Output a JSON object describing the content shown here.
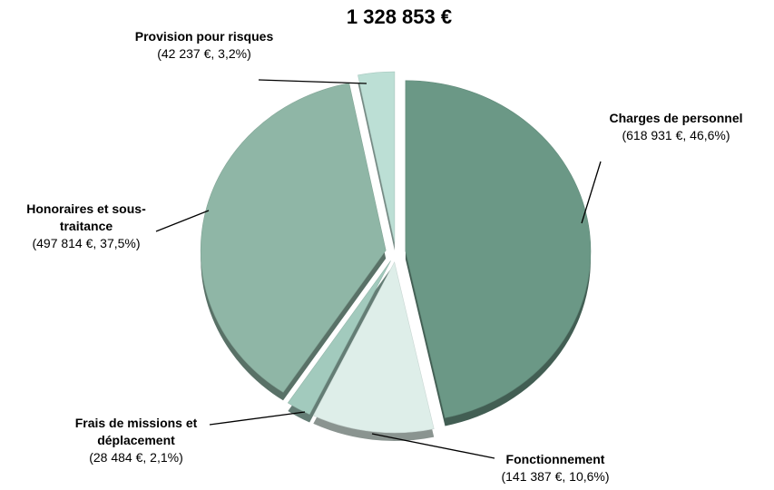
{
  "chart_data": {
    "type": "pie",
    "title": "1 328 853 €",
    "categories": [
      "Charges de personnel",
      "Fonctionnement",
      "Frais de missions et déplacement",
      "Honoraires et sous-traitance",
      "Provision pour risques"
    ],
    "values": [
      618931,
      141387,
      28484,
      497814,
      42237
    ],
    "value_labels": [
      "(618 931 €, 46,6%)",
      "(141 387 €, 10,6%)",
      "(28 484 €, 2,1%)",
      "(497 814 €, 37,5%)",
      "(42 237 €, 3,2%)"
    ],
    "colors": [
      "#6b9886",
      "#deeee9",
      "#a2cabd",
      "#8fb6a6",
      "#bcdfd5"
    ]
  }
}
